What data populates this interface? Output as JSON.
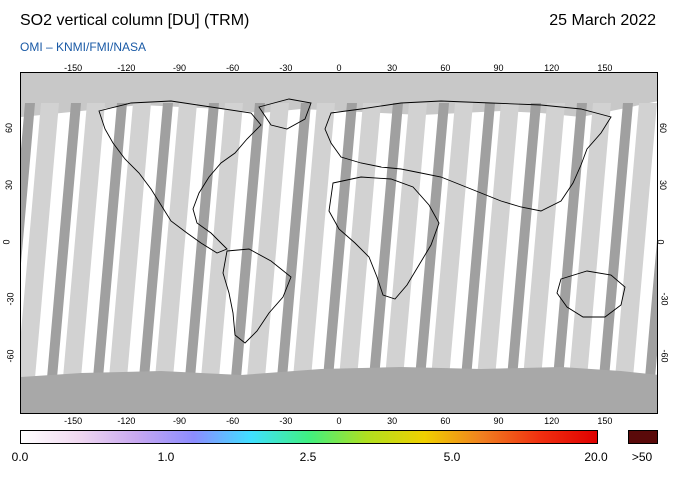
{
  "header": {
    "title": "SO2 vertical column [DU] (TRM)",
    "date": "25 March 2022",
    "source": "OMI  –  KNMI/FMI/NASA"
  },
  "map": {
    "lon_ticks": [
      "-150",
      "-120",
      "-90",
      "-60",
      "-30",
      "0",
      "30",
      "60",
      "90",
      "120",
      "150"
    ],
    "lat_ticks": [
      "60",
      "30",
      "0",
      "-30",
      "-60"
    ],
    "colors": {
      "ocean": "#ffffff",
      "land_outline": "#000000",
      "swath_gap": "#a0a0a0",
      "swath_light": "#d2d2d2",
      "polar_mask": "#a8a8a8"
    }
  },
  "colorbar": {
    "labels": [
      "0.0",
      "1.0",
      "2.5",
      "5.0",
      "20.0"
    ],
    "overflow_label": ">50",
    "colors": [
      "#ffffff",
      "#f0d8f0",
      "#c8a8f0",
      "#8c8cff",
      "#40e0ff",
      "#40f080",
      "#b0e020",
      "#f0d000",
      "#f08020",
      "#f03010",
      "#e00000"
    ],
    "overflow_color": "#5a0a0a"
  }
}
